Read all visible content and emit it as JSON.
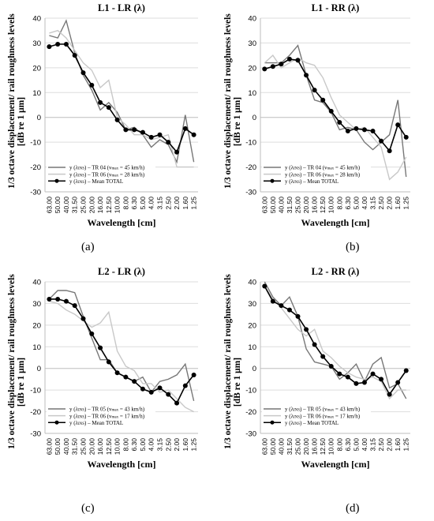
{
  "figure": {
    "ylabel_line1": "1/3  octave displacement/ rail roughness levels",
    "ylabel_line2": "[dB  re 1 μm]",
    "xlabel": "Wavelength [cm]",
    "categories": [
      "63.00",
      "50.00",
      "40.00",
      "31.50",
      "25.00",
      "20.00",
      "16.00",
      "12.50",
      "10.00",
      "8.00",
      "6.30",
      "5.00",
      "4.00",
      "3.15",
      "2.50",
      "2.00",
      "1.60",
      "1.25"
    ],
    "colors": {
      "dark": "#777777",
      "light": "#c8c8c8",
      "mean": "#000000",
      "axis": "#bdbdbd",
      "grid": "#dddddd"
    }
  },
  "chart_data": [
    {
      "type": "line",
      "title": "L1 - LR (λ)",
      "caption": "(a)",
      "ylim": [
        -30,
        40
      ],
      "yticks": [
        -30,
        -20,
        -10,
        0,
        10,
        20,
        30,
        40
      ],
      "legend_position": "bottom-left",
      "series": [
        {
          "name": "y (λINS) – TR 04 (vmax = 45 km/h)",
          "legend_prefix": "y (λ",
          "legend_sub1": "INS",
          "legend_mid": ") – TR 04 (v",
          "legend_sub2": "max",
          "legend_suffix": " = 45 km/h)",
          "color_key": "dark",
          "values": [
            33,
            32,
            39,
            26,
            17,
            11,
            3,
            6,
            2,
            -5,
            -4,
            -7,
            -12,
            -9,
            -11,
            -18,
            1,
            -18
          ]
        },
        {
          "name": "y (λINS) – TR 06 (vmax = 28 km/h)",
          "legend_prefix": "y (λ",
          "legend_sub1": "INS",
          "legend_mid": ") – TR 06 (v",
          "legend_sub2": "max",
          "legend_suffix": " = 28 km/h)",
          "color_key": "light",
          "values": [
            34,
            35,
            32,
            27,
            22,
            19,
            12,
            15,
            0,
            -3,
            -7,
            -7,
            -9,
            -8,
            -7,
            -20,
            -20,
            -20
          ]
        },
        {
          "name": "y (λINS) – Mean TOTAL",
          "legend_prefix": "y (λ",
          "legend_sub1": "INS",
          "legend_mid": ") – Mean TOTAL",
          "legend_sub2": "",
          "legend_suffix": "",
          "color_key": "mean",
          "markers": true,
          "values": [
            28.5,
            29.5,
            29.5,
            25,
            18,
            13,
            6,
            4,
            -1,
            -5,
            -5,
            -6,
            -8,
            -7,
            -10,
            -14,
            -4.5,
            -7
          ]
        }
      ]
    },
    {
      "type": "line",
      "title": "L1 - RR (λ)",
      "caption": "(b)",
      "ylim": [
        -30,
        40
      ],
      "yticks": [
        -30,
        -20,
        -10,
        0,
        10,
        20,
        30,
        40
      ],
      "legend_position": "bottom-left",
      "series": [
        {
          "name": "y (λINS) – TR 04 (vmax = 45 km/h)",
          "legend_prefix": "y (λ",
          "legend_sub1": "INS",
          "legend_mid": ") – TR 04 (v",
          "legend_sub2": "max",
          "legend_suffix": " = 45 km/h)",
          "color_key": "dark",
          "values": [
            22,
            22,
            22,
            25,
            29,
            17,
            7,
            6,
            2,
            -5,
            -4,
            -5,
            -10,
            -13,
            -10,
            -7,
            7,
            -24
          ]
        },
        {
          "name": "y (λINS) – TR 06 (vmax = 28 km/h)",
          "legend_prefix": "y (λ",
          "legend_sub1": "INS",
          "legend_mid": ") – TR 06 (v",
          "legend_sub2": "max",
          "legend_suffix": " = 28 km/h)",
          "color_key": "light",
          "values": [
            22,
            25,
            20,
            22,
            24,
            22,
            21,
            16,
            8,
            1,
            -2,
            -5,
            -4,
            -8,
            -12,
            -25,
            -22,
            -16
          ]
        },
        {
          "name": "y (λINS) – Mean TOTAL",
          "legend_prefix": "y (λ",
          "legend_sub1": "INS",
          "legend_mid": ") – Mean TOTAL",
          "legend_sub2": "",
          "legend_suffix": "",
          "color_key": "mean",
          "markers": true,
          "values": [
            19.5,
            20.5,
            21.5,
            23.5,
            23,
            17,
            11,
            7,
            2.5,
            -2,
            -5.5,
            -4.5,
            -5,
            -5.5,
            -9.5,
            -13.5,
            -3,
            -8
          ]
        }
      ]
    },
    {
      "type": "line",
      "title": "L2 - LR (λ)",
      "caption": "(c)",
      "ylim": [
        -30,
        40
      ],
      "yticks": [
        -30,
        -20,
        -10,
        0,
        10,
        20,
        30,
        40
      ],
      "legend_position": "bottom-left",
      "series": [
        {
          "name": "y (λINS) – TR 05 (vmax = 43 km/h)",
          "legend_prefix": "y (λ",
          "legend_sub1": "INS",
          "legend_mid": ") – TR 05 (v",
          "legend_sub2": "max",
          "legend_suffix": " = 43 km/h)",
          "color_key": "dark",
          "values": [
            32,
            36,
            36,
            35,
            24,
            14,
            4,
            4,
            -2,
            -4,
            -6,
            -4,
            -11,
            -6,
            -5,
            -3,
            2,
            -15
          ]
        },
        {
          "name": "y (λINS) – TR 06 (vmax = 17 km/h)",
          "legend_prefix": "y (λ",
          "legend_sub1": "INS",
          "legend_mid": ") – TR 06 (v",
          "legend_sub2": "max",
          "legend_suffix": " = 17 km/h)",
          "color_key": "light",
          "values": [
            31,
            30,
            27,
            25,
            22,
            19,
            21,
            26,
            8,
            1,
            -1,
            -7,
            -7,
            -11,
            -10,
            -14,
            -18,
            -20
          ]
        },
        {
          "name": "y (λINS) – Mean TOTAL",
          "legend_prefix": "y (λ",
          "legend_sub1": "INS",
          "legend_mid": ") – Mean TOTAL",
          "legend_sub2": "",
          "legend_suffix": "",
          "color_key": "mean",
          "markers": true,
          "values": [
            32,
            32,
            31,
            29,
            23,
            16,
            9.5,
            3,
            -2,
            -4,
            -6,
            -9.5,
            -11,
            -9,
            -12,
            -16,
            -8,
            -3
          ]
        }
      ]
    },
    {
      "type": "line",
      "title": "L2 - RR (λ)",
      "caption": "(d)",
      "ylim": [
        -30,
        40
      ],
      "yticks": [
        -30,
        -20,
        -10,
        0,
        10,
        20,
        30,
        40
      ],
      "legend_position": "bottom-left",
      "series": [
        {
          "name": "y (λINS) – TR 05 (vmax = 43 km/h)",
          "legend_prefix": "y (λ",
          "legend_sub1": "INS",
          "legend_mid": ") – TR 05 (v",
          "legend_sub2": "max",
          "legend_suffix": " = 43 km/h)",
          "color_key": "dark",
          "values": [
            40,
            33,
            29,
            33,
            24,
            9,
            3,
            2,
            1,
            -5,
            -2,
            2,
            -6,
            2,
            5,
            -9,
            -7,
            -14
          ]
        },
        {
          "name": "y (λINS) – TR 06 (vmax = 17 km/h)",
          "legend_prefix": "y (λ",
          "legend_sub1": "INS",
          "legend_mid": ") – TR 06 (v",
          "legend_sub2": "max",
          "legend_suffix": " = 17 km/h)",
          "color_key": "light",
          "values": [
            38,
            32,
            28,
            23,
            18,
            15,
            18,
            8,
            5,
            1,
            -2,
            -4,
            -5,
            -4,
            -6,
            -14,
            -10,
            -10
          ]
        },
        {
          "name": "y (λINS) – Mean TOTAL",
          "legend_prefix": "y (λ",
          "legend_sub1": "INS",
          "legend_mid": ") – Mean TOTAL",
          "legend_sub2": "",
          "legend_suffix": "",
          "color_key": "mean",
          "markers": true,
          "values": [
            38,
            31,
            29,
            27,
            24,
            18,
            11,
            5.5,
            1,
            -2.5,
            -4,
            -7,
            -6.5,
            -2.5,
            -5,
            -12,
            -6.5,
            -1
          ]
        }
      ]
    }
  ]
}
